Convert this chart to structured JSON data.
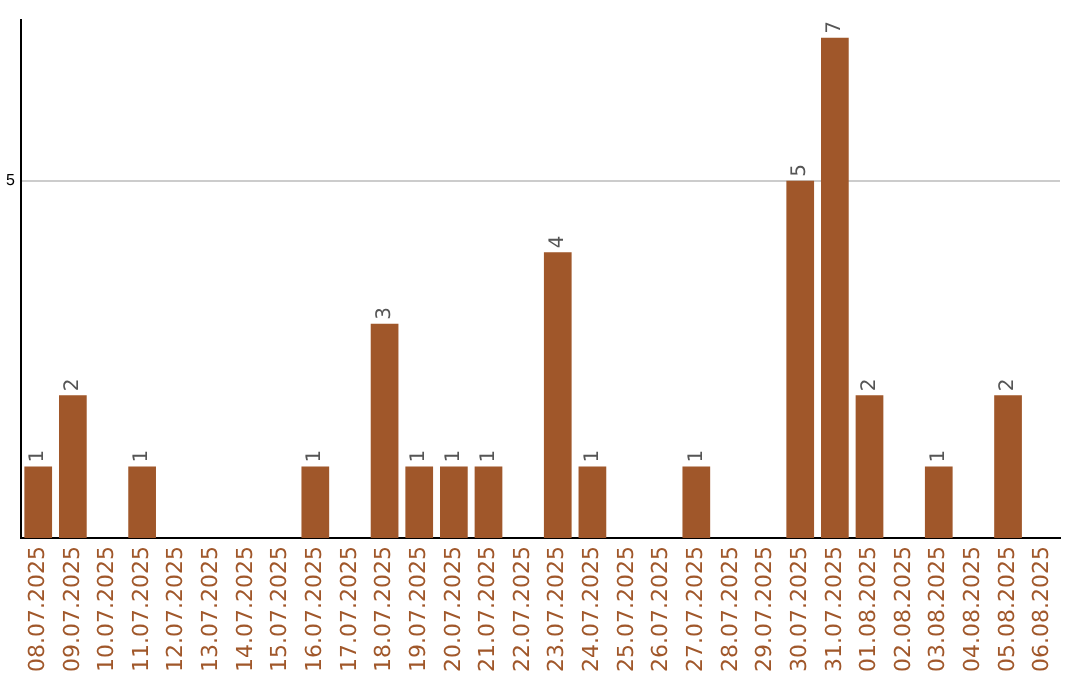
{
  "chart_data": {
    "type": "bar",
    "categories": [
      "08.07.2025",
      "09.07.2025",
      "10.07.2025",
      "11.07.2025",
      "12.07.2025",
      "13.07.2025",
      "14.07.2025",
      "15.07.2025",
      "16.07.2025",
      "17.07.2025",
      "18.07.2025",
      "19.07.2025",
      "20.07.2025",
      "21.07.2025",
      "22.07.2025",
      "23.07.2025",
      "24.07.2025",
      "25.07.2025",
      "26.07.2025",
      "27.07.2025",
      "28.07.2025",
      "29.07.2025",
      "30.07.2025",
      "31.07.2025",
      "01.08.2025",
      "02.08.2025",
      "03.08.2025",
      "04.08.2025",
      "05.08.2025",
      "06.08.2025"
    ],
    "values": [
      1,
      2,
      0,
      1,
      0,
      0,
      0,
      0,
      1,
      0,
      3,
      1,
      1,
      1,
      0,
      4,
      1,
      0,
      0,
      1,
      0,
      0,
      5,
      7,
      2,
      0,
      1,
      0,
      2,
      0
    ],
    "value_labels": [
      "1",
      "2",
      null,
      "1",
      null,
      null,
      null,
      null,
      "1",
      null,
      "3",
      "1",
      "1",
      "1",
      null,
      "4",
      "1",
      null,
      null,
      "1",
      null,
      null,
      "5",
      "7",
      "2",
      null,
      "1",
      null,
      "2",
      null
    ],
    "color": "#a0572a",
    "ylim": [
      0,
      7.25
    ],
    "yticks": [
      5
    ],
    "grid": "y",
    "legend": false
  }
}
